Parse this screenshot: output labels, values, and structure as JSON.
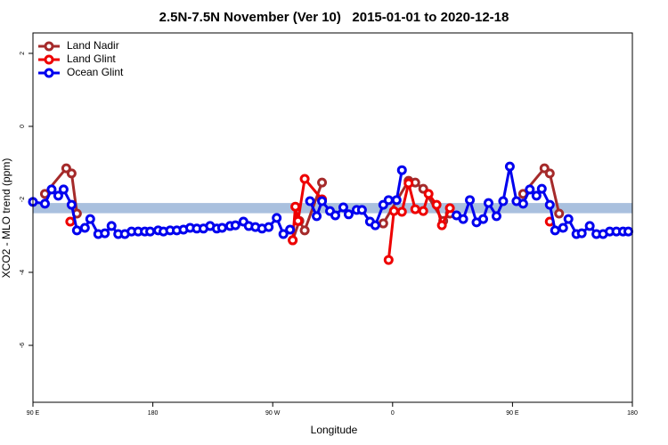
{
  "chart_data": {
    "type": "line",
    "title": "2.5N-7.5N November (Ver 10)   2015-01-01 to 2020-12-18",
    "xlabel": "Longitude",
    "ylabel": "XCO2 - MLO trend (ppm)",
    "xlim": [
      90,
      540
    ],
    "ylim": [
      -7.56,
      2.56
    ],
    "xticks": [
      {
        "value": 90,
        "label": "90 E"
      },
      180,
      {
        "value": 270,
        "label": "90 W"
      },
      {
        "value": 360,
        "label": "0"
      },
      {
        "value": 450,
        "label": "90 E"
      },
      {
        "value": 540,
        "label": "180"
      }
    ],
    "yticks": [
      2,
      0,
      -2,
      -4,
      -6
    ],
    "band": {
      "range": [
        -2.1,
        -2.38
      ],
      "color": "#a9c0de"
    },
    "legend": "top-left",
    "series": [
      {
        "name": "Land Nadir",
        "color": "#a52a2a",
        "x": [
          99,
          115,
          119,
          123,
          null,
          285,
          290,
          294,
          307,
          null,
          353,
          372,
          377,
          383,
          398,
          403,
          null,
          458,
          474,
          478,
          485
        ],
        "values": [
          -1.85,
          -1.15,
          -1.29,
          -2.39,
          null,
          -3.12,
          -2.59,
          -2.85,
          -1.54,
          null,
          -2.66,
          -1.49,
          -1.54,
          -1.71,
          -2.59,
          -2.39,
          null,
          -1.85,
          -1.15,
          -1.29,
          -2.39
        ]
      },
      {
        "name": "Land Glint",
        "color": "#ee0000",
        "x": [
          118,
          null,
          285,
          287,
          289,
          294,
          307,
          null,
          357,
          361,
          367,
          372,
          377,
          383,
          387,
          393,
          397,
          403,
          null,
          478
        ],
        "values": [
          -2.61,
          null,
          -3.12,
          -2.2,
          -2.59,
          -1.44,
          -2.0,
          null,
          -3.66,
          -2.32,
          -2.34,
          -1.56,
          -2.27,
          -2.32,
          -1.85,
          -2.15,
          -2.71,
          -2.24,
          null,
          -2.61
        ]
      },
      {
        "name": "Ocean Glint",
        "color": "#0000ee",
        "x": [
          90,
          99,
          104,
          109,
          113,
          119,
          123,
          129,
          133,
          139,
          144,
          149,
          154,
          159,
          164,
          169,
          174,
          178,
          184,
          188,
          193,
          198,
          203,
          208,
          213,
          218,
          223,
          228,
          232,
          238,
          242,
          248,
          252,
          257,
          262,
          267,
          273,
          278,
          283,
          null,
          298,
          303,
          307,
          313,
          317,
          323,
          327,
          333,
          337,
          343,
          347,
          353,
          357,
          363,
          367,
          null,
          408,
          413,
          418,
          423,
          428,
          432,
          438,
          443,
          448,
          453,
          458,
          463,
          468,
          472,
          478,
          482,
          488,
          492,
          498,
          502,
          508,
          513,
          518,
          523,
          528,
          533,
          537
        ],
        "values": [
          -2.07,
          -2.12,
          -1.73,
          -1.9,
          -1.73,
          -2.15,
          -2.85,
          -2.78,
          -2.54,
          -2.95,
          -2.93,
          -2.73,
          -2.95,
          -2.95,
          -2.88,
          -2.88,
          -2.88,
          -2.88,
          -2.85,
          -2.88,
          -2.85,
          -2.85,
          -2.83,
          -2.78,
          -2.8,
          -2.8,
          -2.73,
          -2.8,
          -2.78,
          -2.73,
          -2.71,
          -2.61,
          -2.73,
          -2.76,
          -2.8,
          -2.76,
          -2.51,
          -2.95,
          -2.83,
          null,
          -2.05,
          -2.46,
          -2.05,
          -2.32,
          -2.44,
          -2.22,
          -2.41,
          -2.29,
          -2.29,
          -2.61,
          -2.71,
          -2.15,
          -2.02,
          -2.02,
          -1.2,
          null,
          -2.44,
          -2.54,
          -2.02,
          -2.63,
          -2.54,
          -2.1,
          -2.46,
          -2.05,
          -1.1,
          -2.05,
          -2.12,
          -1.73,
          -1.9,
          -1.71,
          -2.15,
          -2.85,
          -2.78,
          -2.54,
          -2.95,
          -2.93,
          -2.73,
          -2.95,
          -2.95,
          -2.88,
          -2.88,
          -2.88,
          -2.88
        ]
      }
    ]
  }
}
